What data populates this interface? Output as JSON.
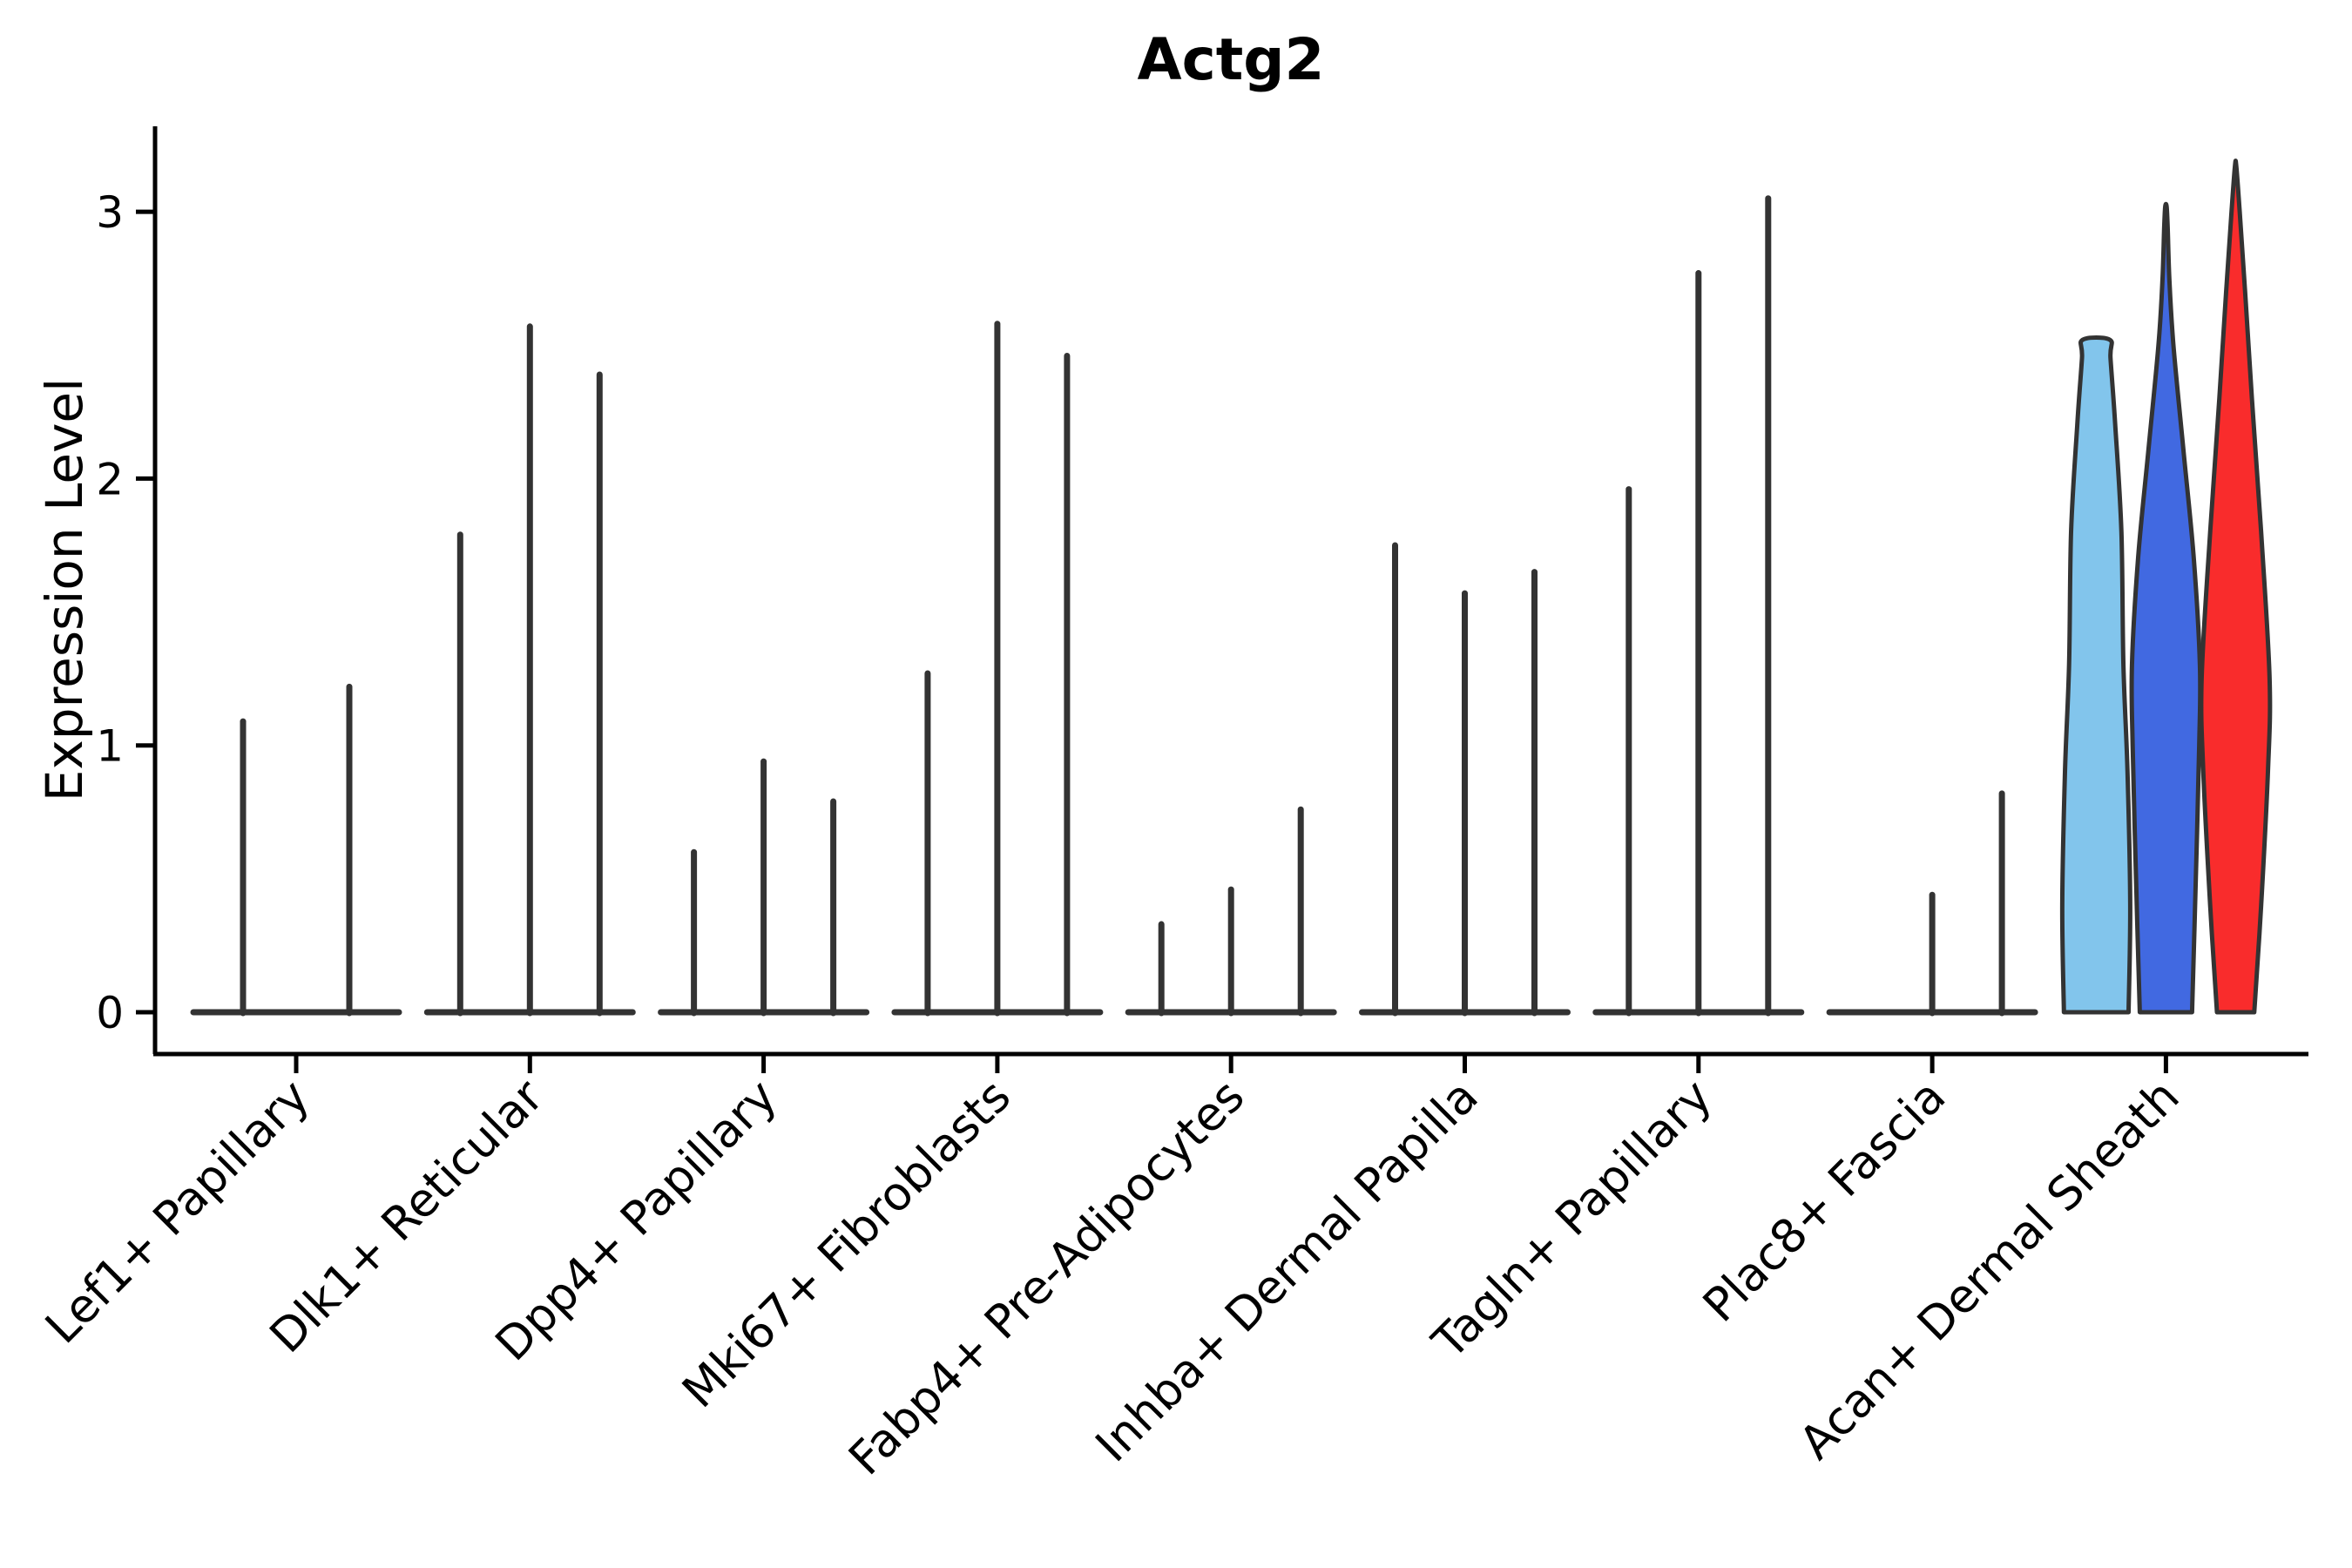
{
  "chart_data": {
    "type": "violin",
    "title": "Actg2",
    "ylabel": "Expression Level",
    "xlabel": "",
    "ylim": [
      0,
      3.3
    ],
    "yticks": [
      0,
      1,
      2,
      3
    ],
    "grid": false,
    "legend": "none",
    "categories": [
      "Lef1+ Papillary",
      "Dlk1+ Reticular",
      "Dpp4+ Papillary",
      "Mki67+ Fibroblasts",
      "Fabp4+ Pre-Adipocytes",
      "Inhba+ Dermal Papilla",
      "Tagln+ Papillary",
      "Plac8+ Fascia",
      "Acan+ Dermal Sheath"
    ],
    "colors": {
      "spike": "#333333",
      "outline": "#333333",
      "axis": "#000000",
      "violin_skyblue": "#82C5EC",
      "violin_blue": "#4169E1",
      "violin_red": "#F92C2C"
    },
    "groups": [
      {
        "category": "Lef1+ Papillary",
        "violins": [
          {
            "max": 1.09
          },
          {
            "max": 1.22
          }
        ]
      },
      {
        "category": "Dlk1+ Reticular",
        "violins": [
          {
            "max": 1.79
          },
          {
            "max": 2.57
          },
          {
            "max": 2.39
          }
        ]
      },
      {
        "category": "Dpp4+ Papillary",
        "violins": [
          {
            "max": 0.6
          },
          {
            "max": 0.94
          },
          {
            "max": 0.79
          }
        ]
      },
      {
        "category": "Mki67+ Fibroblasts",
        "violins": [
          {
            "max": 1.27
          },
          {
            "max": 2.58
          },
          {
            "max": 2.46
          }
        ]
      },
      {
        "category": "Fabp4+ Pre-Adipocytes",
        "violins": [
          {
            "max": 0.33
          },
          {
            "max": 0.46
          },
          {
            "max": 0.76
          }
        ]
      },
      {
        "category": "Inhba+ Dermal Papilla",
        "violins": [
          {
            "max": 1.75
          },
          {
            "max": 1.57
          },
          {
            "max": 1.65
          }
        ]
      },
      {
        "category": "Tagln+ Papillary",
        "violins": [
          {
            "max": 1.96
          },
          {
            "max": 2.77
          },
          {
            "max": 3.05
          }
        ]
      },
      {
        "category": "Plac8+ Fascia",
        "violins": [
          {
            "max": 0.0
          },
          {
            "max": 0.44
          },
          {
            "max": 0.82
          }
        ]
      },
      {
        "category": "Acan+ Dermal Sheath",
        "violins": [
          {
            "max": 2.52,
            "color": "#82C5EC",
            "flat_top": true,
            "profile": [
              [
                0,
                0.95
              ],
              [
                0.4,
                1.0
              ],
              [
                0.9,
                0.92
              ],
              [
                1.3,
                0.8
              ],
              [
                1.8,
                0.74
              ],
              [
                2.2,
                0.56
              ],
              [
                2.45,
                0.42
              ],
              [
                2.52,
                0.4
              ]
            ]
          },
          {
            "max": 3.02,
            "color": "#4169E1",
            "flat_top": false,
            "profile": [
              [
                0,
                0.77
              ],
              [
                0.5,
                0.88
              ],
              [
                1.0,
                0.98
              ],
              [
                1.3,
                1.0
              ],
              [
                1.7,
                0.82
              ],
              [
                2.1,
                0.52
              ],
              [
                2.5,
                0.22
              ],
              [
                2.75,
                0.1
              ],
              [
                2.95,
                0.05
              ],
              [
                3.02,
                0.02
              ]
            ]
          },
          {
            "max": 3.17,
            "color": "#F92C2C",
            "flat_top": false,
            "profile": [
              [
                0,
                0.55
              ],
              [
                0.4,
                0.75
              ],
              [
                0.9,
                0.95
              ],
              [
                1.25,
                1.0
              ],
              [
                1.8,
                0.75
              ],
              [
                2.3,
                0.48
              ],
              [
                2.7,
                0.28
              ],
              [
                3.0,
                0.12
              ],
              [
                3.17,
                0.02
              ]
            ]
          }
        ]
      }
    ]
  }
}
